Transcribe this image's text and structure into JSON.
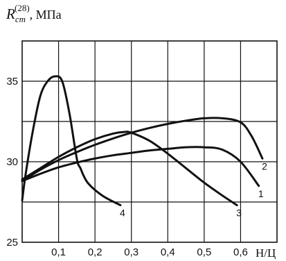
{
  "chart_data": {
    "type": "line",
    "ylabel": {
      "main": "R",
      "subscript": "cm",
      "superscript": "(28)",
      "unit": ", МПа"
    },
    "xlabel": "Н/Ц",
    "xlim": [
      0,
      0.7
    ],
    "ylim": [
      25,
      37.5
    ],
    "x_ticks": [
      "0,1",
      "0,2",
      "0,3",
      "0,4",
      "0,5",
      "0,6"
    ],
    "x_tick_values": [
      0.1,
      0.2,
      0.3,
      0.4,
      0.5,
      0.6
    ],
    "y_ticks": [
      "25",
      "30",
      "35"
    ],
    "y_tick_values": [
      25,
      30,
      35
    ],
    "grid": true,
    "series": [
      {
        "name": "1",
        "x": [
          0,
          0.05,
          0.1,
          0.15,
          0.2,
          0.25,
          0.3,
          0.35,
          0.4,
          0.45,
          0.5,
          0.55,
          0.6,
          0.65
        ],
        "y": [
          28.8,
          29.25,
          29.65,
          29.95,
          30.2,
          30.4,
          30.55,
          30.7,
          30.8,
          30.9,
          30.9,
          30.75,
          30.0,
          28.5
        ]
      },
      {
        "name": "2",
        "x": [
          0,
          0.05,
          0.1,
          0.15,
          0.2,
          0.25,
          0.3,
          0.35,
          0.4,
          0.45,
          0.5,
          0.55,
          0.6,
          0.63,
          0.66
        ],
        "y": [
          28.8,
          29.5,
          30.1,
          30.6,
          31.05,
          31.45,
          31.8,
          32.1,
          32.35,
          32.55,
          32.7,
          32.7,
          32.45,
          31.6,
          30.2
        ]
      },
      {
        "name": "3",
        "x": [
          0,
          0.05,
          0.1,
          0.15,
          0.2,
          0.25,
          0.28,
          0.3,
          0.35,
          0.4,
          0.45,
          0.5,
          0.55,
          0.59
        ],
        "y": [
          28.9,
          29.6,
          30.3,
          30.9,
          31.4,
          31.75,
          31.85,
          31.8,
          31.3,
          30.5,
          29.6,
          28.7,
          27.9,
          27.3
        ]
      },
      {
        "name": "4",
        "x": [
          0,
          0.01,
          0.03,
          0.05,
          0.07,
          0.09,
          0.11,
          0.13,
          0.15,
          0.16,
          0.18,
          0.22,
          0.27
        ],
        "y": [
          27.6,
          29.3,
          32.0,
          34.1,
          35.0,
          35.3,
          35.0,
          33.0,
          30.2,
          29.6,
          28.7,
          27.9,
          27.3
        ]
      }
    ]
  }
}
